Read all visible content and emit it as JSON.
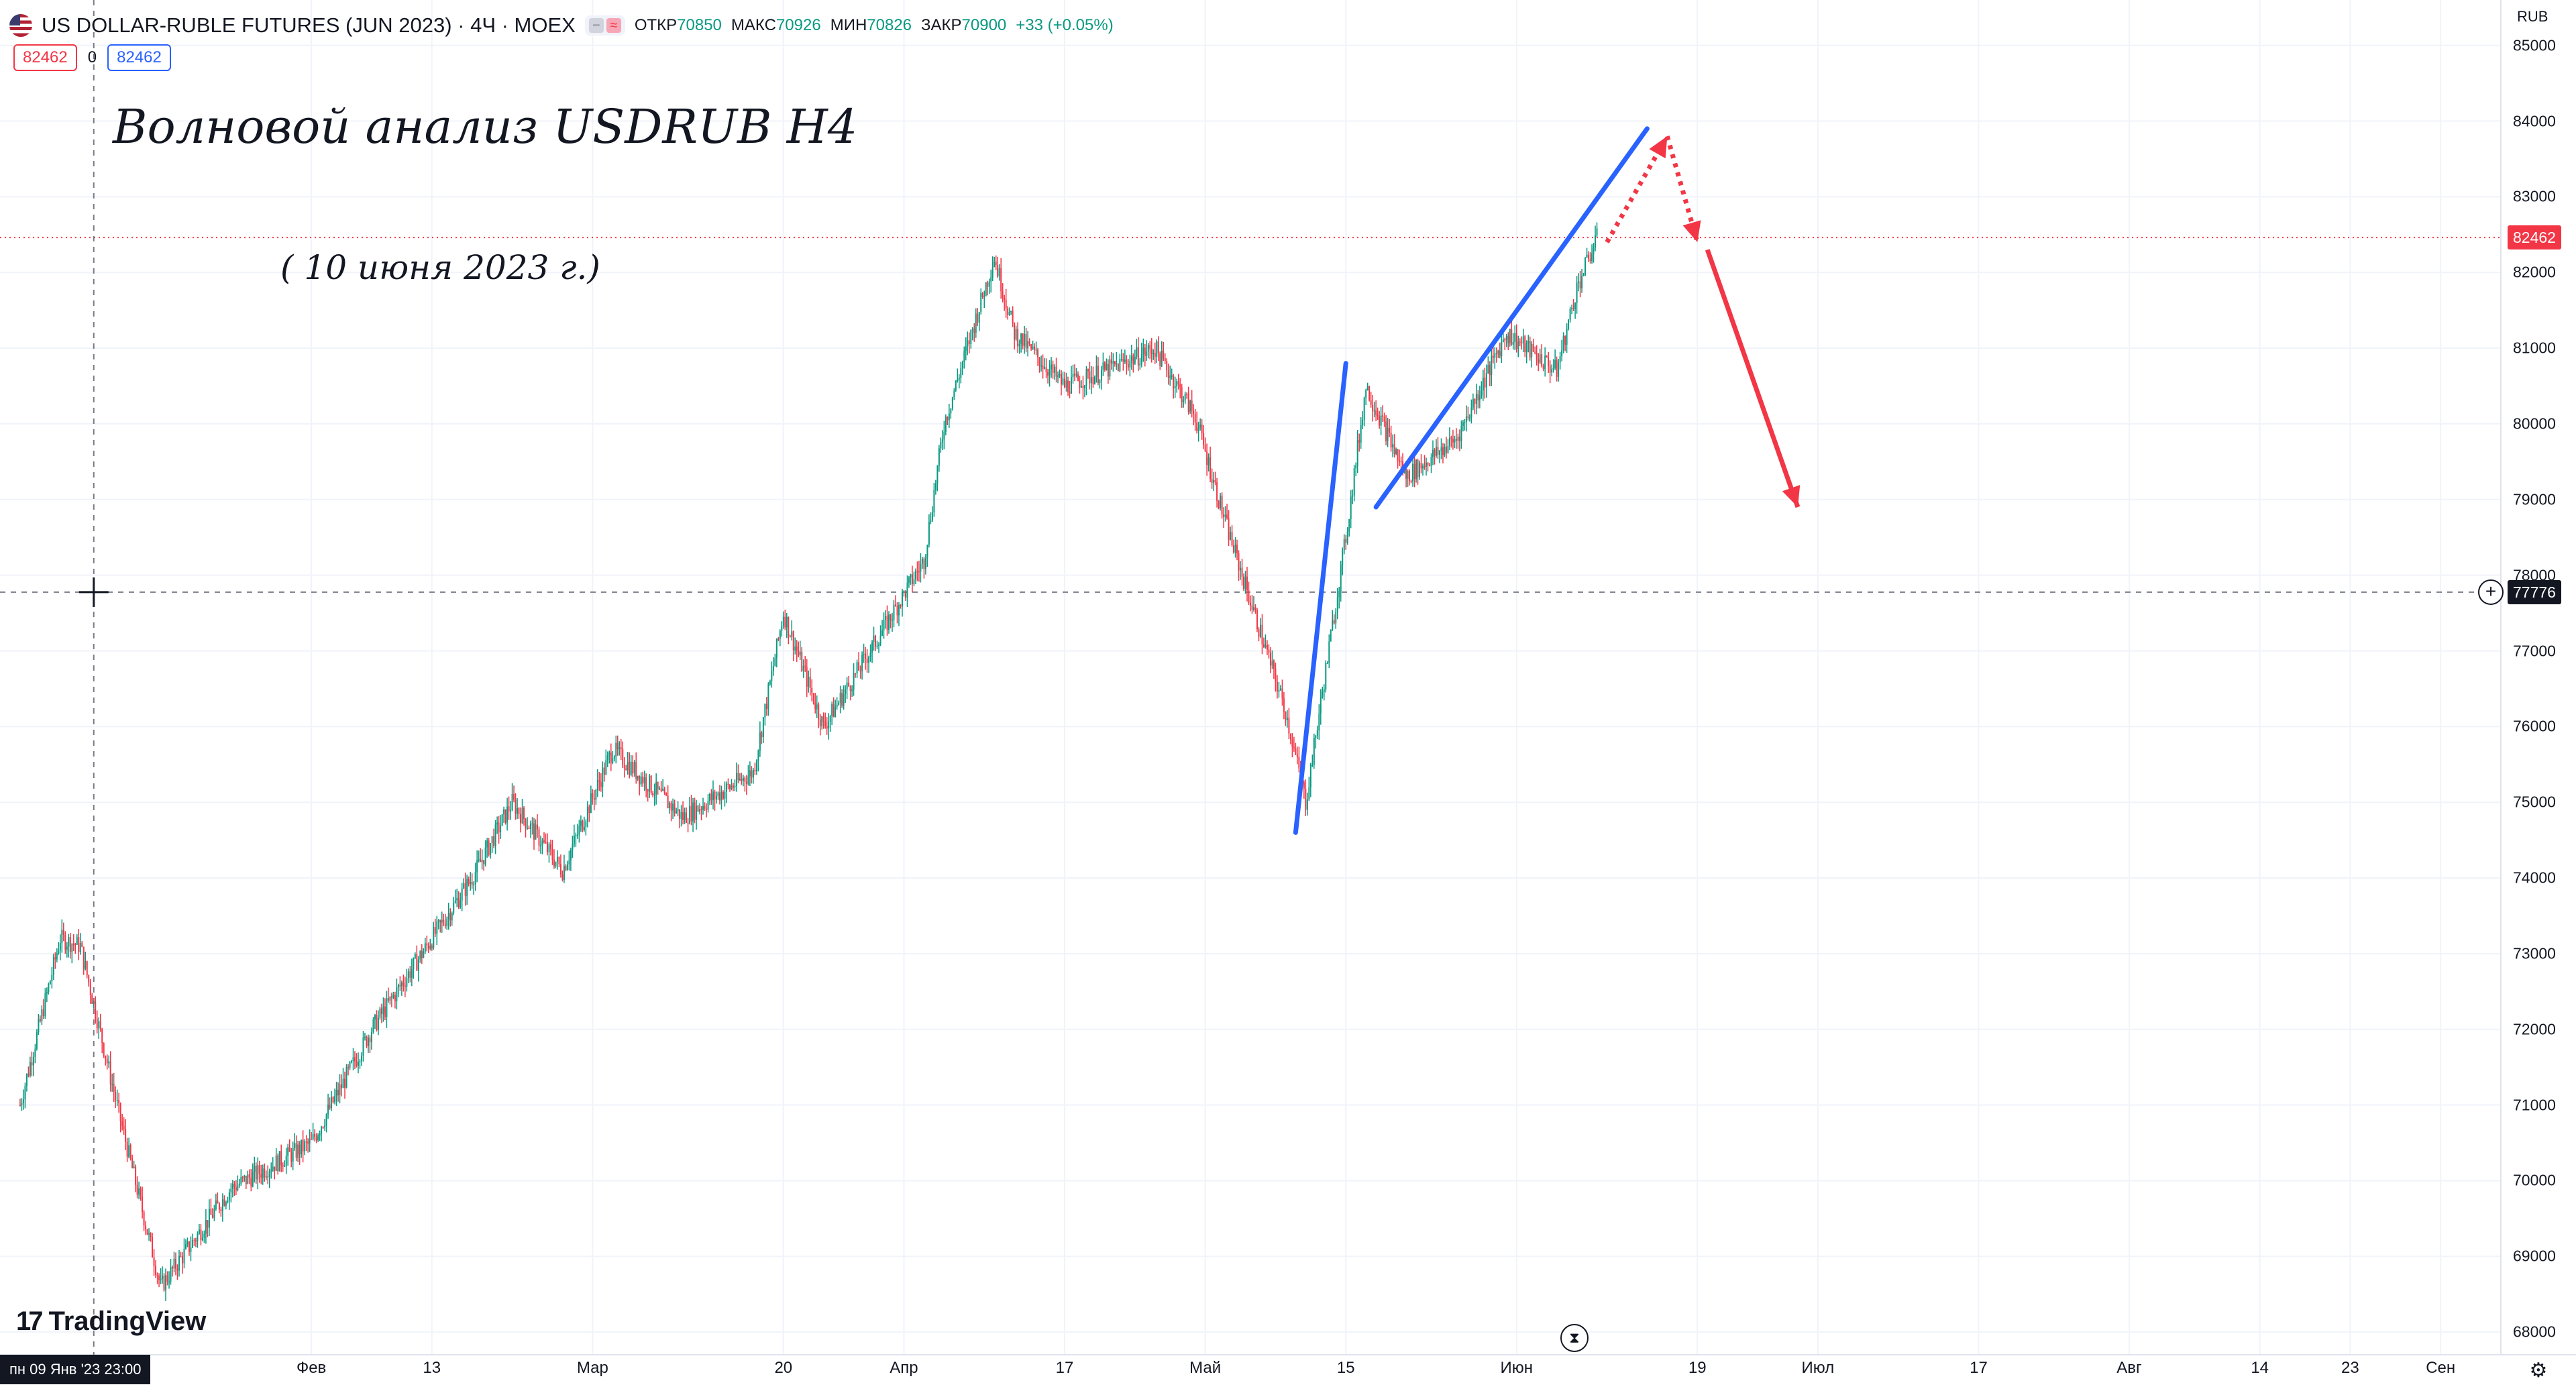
{
  "header": {
    "symbol_title": "US DOLLAR-RUBLE FUTURES (JUN 2023) · 4Ч · MOEX",
    "flag_icon": "us-flag-icon",
    "ohlc": {
      "open_label": "ОТКР",
      "open_value": "70850",
      "high_label": "МАКС",
      "high_value": "70926",
      "low_label": "МИН",
      "low_value": "70826",
      "close_label": "ЗАКР",
      "close_value": "70900",
      "change": "+33 (+0.05%)"
    }
  },
  "trade": {
    "sell_price": "82462",
    "spread": "0",
    "buy_price": "82462"
  },
  "annotations": {
    "title": "Волновой анализ USDRUB H4",
    "date": "( 10 июня 2023 г.)"
  },
  "branding": {
    "logo_text": "TradingView"
  },
  "crosshair": {
    "time_label": "пн 09 Янв '23   23:00",
    "price_label": "77776"
  },
  "last_price": {
    "label": "82462"
  },
  "price_axis": {
    "currency": "RUB"
  },
  "colors": {
    "up": "#089981",
    "down": "#f23645",
    "trend_line": "#2962ff",
    "forecast_arrow": "#f23645",
    "grid": "#f0f3fa"
  },
  "chart_data": {
    "type": "candlestick",
    "title": "",
    "ylim": [
      67700,
      85600
    ],
    "y_ticks": [
      68000,
      69000,
      70000,
      71000,
      72000,
      73000,
      74000,
      75000,
      76000,
      77000,
      78000,
      79000,
      80000,
      81000,
      82000,
      83000,
      84000,
      85000
    ],
    "x_ticks": [
      "Фев",
      "13",
      "Мар",
      "20",
      "Апр",
      "17",
      "Май",
      "15",
      "Июн",
      "19",
      "Июл",
      "17",
      "Авг",
      "14",
      "23",
      "Сен"
    ],
    "price_path": [
      {
        "t": "2023-01-03",
        "p": 71000
      },
      {
        "t": "2023-01-07",
        "p": 73200
      },
      {
        "t": "2023-01-09",
        "p": 73100
      },
      {
        "t": "2023-01-13",
        "p": 70800
      },
      {
        "t": "2023-01-17",
        "p": 68600
      },
      {
        "t": "2023-01-24",
        "p": 69900
      },
      {
        "t": "2023-02-01",
        "p": 70500
      },
      {
        "t": "2023-02-07",
        "p": 72000
      },
      {
        "t": "2023-02-13",
        "p": 73200
      },
      {
        "t": "2023-02-17",
        "p": 74000
      },
      {
        "t": "2023-02-21",
        "p": 75000
      },
      {
        "t": "2023-02-26",
        "p": 74100
      },
      {
        "t": "2023-03-03",
        "p": 75700
      },
      {
        "t": "2023-03-10",
        "p": 74800
      },
      {
        "t": "2023-03-17",
        "p": 75400
      },
      {
        "t": "2023-03-20",
        "p": 77500
      },
      {
        "t": "2023-03-24",
        "p": 76000
      },
      {
        "t": "2023-03-30",
        "p": 77300
      },
      {
        "t": "2023-04-03",
        "p": 78200
      },
      {
        "t": "2023-04-05",
        "p": 80000
      },
      {
        "t": "2023-04-10",
        "p": 82200
      },
      {
        "t": "2023-04-12",
        "p": 81200
      },
      {
        "t": "2023-04-17",
        "p": 80500
      },
      {
        "t": "2023-04-21",
        "p": 80700
      },
      {
        "t": "2023-04-26",
        "p": 81000
      },
      {
        "t": "2023-04-30",
        "p": 80100
      },
      {
        "t": "2023-05-03",
        "p": 78700
      },
      {
        "t": "2023-05-09",
        "p": 76200
      },
      {
        "t": "2023-05-11",
        "p": 75000
      },
      {
        "t": "2023-05-15",
        "p": 78500
      },
      {
        "t": "2023-05-17",
        "p": 80500
      },
      {
        "t": "2023-05-21",
        "p": 79300
      },
      {
        "t": "2023-05-26",
        "p": 79800
      },
      {
        "t": "2023-05-31",
        "p": 81200
      },
      {
        "t": "2023-06-05",
        "p": 80700
      },
      {
        "t": "2023-06-07",
        "p": 81800
      },
      {
        "t": "2023-06-09",
        "p": 82460
      }
    ],
    "last_price": 82462,
    "crosshair_price": 77776,
    "trend_lines": [
      {
        "from": {
          "t": "2023-05-10",
          "p": 74600
        },
        "to": {
          "t": "2023-05-15",
          "p": 80800
        }
      },
      {
        "from": {
          "t": "2023-05-18",
          "p": 78900
        },
        "to": {
          "t": "2023-06-14",
          "p": 83900
        }
      }
    ],
    "forecast": [
      {
        "style": "dotted",
        "from": {
          "t": "2023-06-10",
          "p": 82400
        },
        "to": {
          "t": "2023-06-16",
          "p": 83800
        }
      },
      {
        "style": "dotted",
        "from": {
          "t": "2023-06-16",
          "p": 83800
        },
        "to": {
          "t": "2023-06-19",
          "p": 82400
        }
      },
      {
        "style": "solid",
        "from": {
          "t": "2023-06-20",
          "p": 82300
        },
        "to": {
          "t": "2023-06-29",
          "p": 78900
        }
      }
    ]
  }
}
